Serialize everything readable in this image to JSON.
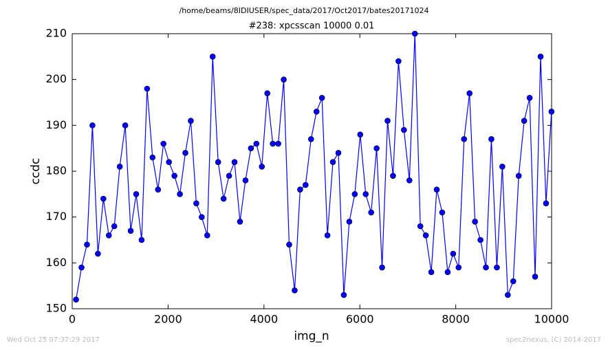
{
  "chart_data": {
    "type": "line",
    "suptitle": "/home/beams/8IDIUSER/spec_data/2017/Oct2017/bates20171024",
    "title": "#238: xpcsscan 10000 0.01",
    "x_label": "img_n",
    "y_label": "ccdc",
    "timestamp": "Wed Oct 25 07:37:29 2017",
    "credit": "spec2nexus, (C) 2014-2017",
    "x": [
      80,
      194,
      308,
      422,
      536,
      650,
      764,
      878,
      992,
      1106,
      1220,
      1334,
      1448,
      1562,
      1676,
      1790,
      1904,
      2018,
      2132,
      2246,
      2360,
      2474,
      2588,
      2702,
      2816,
      2930,
      3044,
      3158,
      3272,
      3386,
      3500,
      3614,
      3728,
      3842,
      3956,
      4070,
      4184,
      4298,
      4412,
      4526,
      4640,
      4754,
      4868,
      4982,
      5096,
      5210,
      5324,
      5438,
      5552,
      5666,
      5780,
      5894,
      6008,
      6122,
      6236,
      6350,
      6464,
      6578,
      6692,
      6806,
      6920,
      7034,
      7148,
      7262,
      7376,
      7490,
      7604,
      7718,
      7832,
      7946,
      8060,
      8174,
      8288,
      8402,
      8516,
      8630,
      8744,
      8858,
      8972,
      9086,
      9200,
      9314,
      9428,
      9542,
      9656,
      9770,
      9884,
      9998
    ],
    "series": [
      {
        "name": "ccdc",
        "color": "#0000ff",
        "values": [
          152,
          159,
          164,
          190,
          162,
          174,
          166,
          168,
          181,
          190,
          167,
          175,
          165,
          198,
          183,
          176,
          186,
          182,
          179,
          175,
          184,
          191,
          173,
          170,
          166,
          205,
          182,
          174,
          179,
          182,
          169,
          178,
          185,
          186,
          181,
          197,
          186,
          186,
          200,
          164,
          154,
          176,
          177,
          187,
          193,
          196,
          166,
          182,
          184,
          153,
          169,
          175,
          188,
          175,
          171,
          185,
          159,
          191,
          179,
          204,
          189,
          178,
          210,
          168,
          166,
          158,
          176,
          171,
          158,
          162,
          159,
          187,
          197,
          169,
          165,
          159,
          187,
          159,
          181,
          153,
          156,
          179,
          191,
          196,
          157,
          205,
          173,
          193
        ]
      }
    ],
    "xlim": [
      0,
      10000
    ],
    "xticks": [
      0,
      2000,
      4000,
      6000,
      8000,
      10000
    ],
    "ylim": [
      150,
      210
    ],
    "yticks": [
      150,
      160,
      170,
      180,
      190,
      200,
      210
    ],
    "grid": false
  }
}
